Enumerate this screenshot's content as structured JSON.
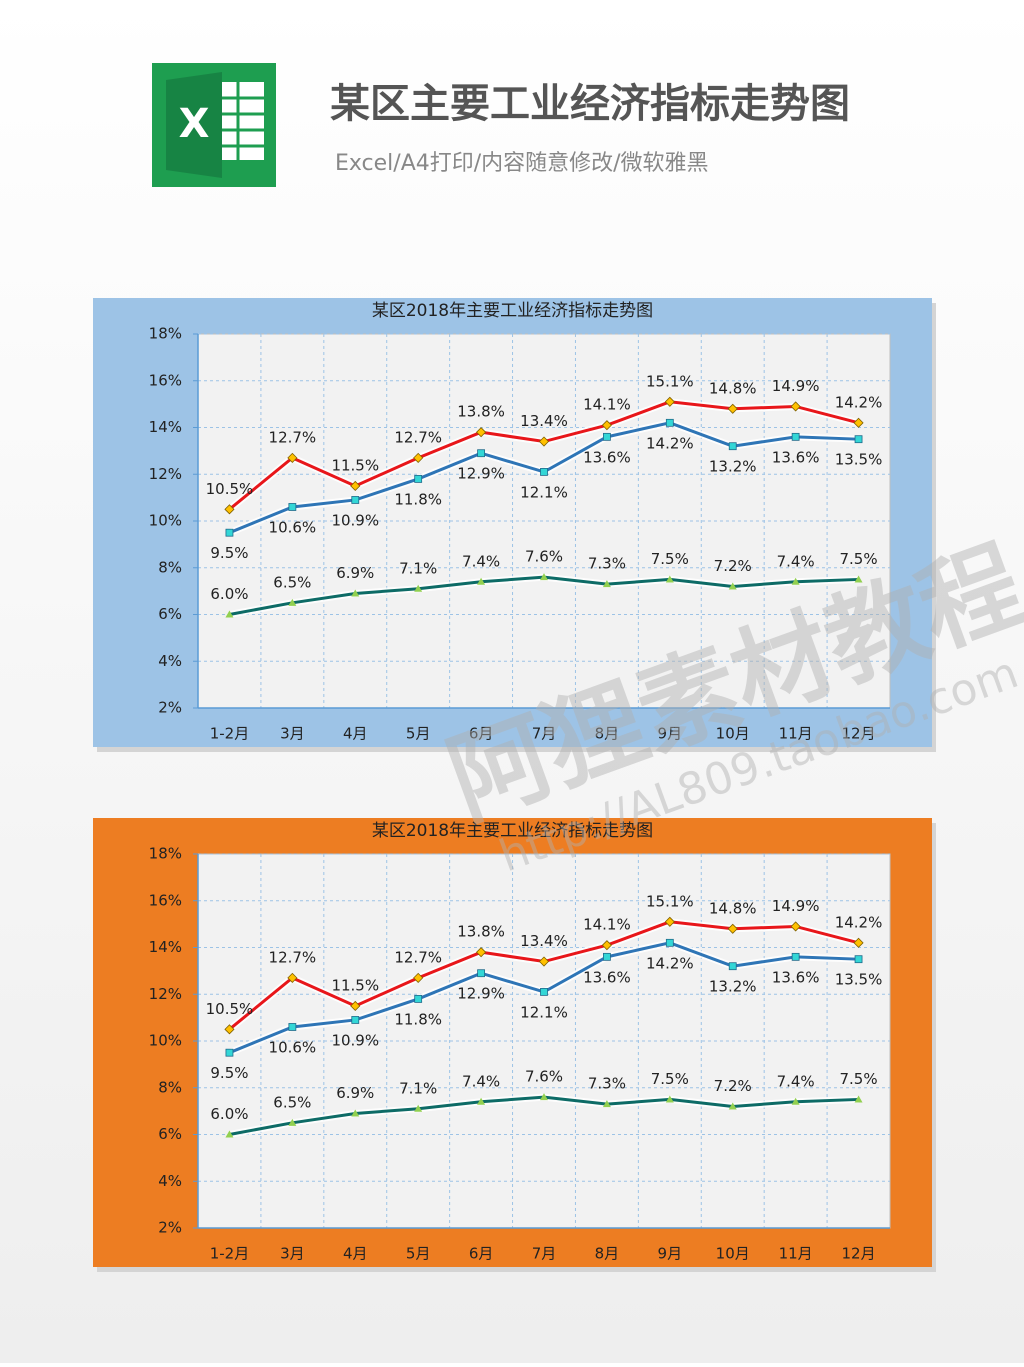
{
  "header": {
    "logo": "X",
    "title": "某区主要工业经济指标走势图",
    "subtitle": "Excel/A4打印/内容随意修改/微软雅黑"
  },
  "watermark": {
    "name": "阿狸素材教程",
    "url": "http://AL809.taobao.com"
  },
  "chart_data": [
    {
      "type": "line",
      "title": "某区2018年主要工业经济指标走势图",
      "background": "#9dc3e6",
      "categories": [
        "1-2月",
        "3月",
        "4月",
        "5月",
        "6月",
        "7月",
        "8月",
        "9月",
        "10月",
        "11月",
        "12月"
      ],
      "series": [
        {
          "color": "#e8161a",
          "marker": "diamond",
          "marker_color": "#ffc000",
          "label_position": "above",
          "values": [
            10.5,
            12.7,
            11.5,
            12.7,
            13.8,
            13.4,
            14.1,
            15.1,
            14.8,
            14.9,
            14.2
          ],
          "value_labels": [
            "10.5%",
            "12.7%",
            "11.5%",
            "12.7%",
            "13.8%",
            "13.4%",
            "14.1%",
            "15.1%",
            "14.8%",
            "14.9%",
            "14.2%"
          ]
        },
        {
          "color": "#2e75b6",
          "marker": "square",
          "marker_color": "#33d6d6",
          "label_position": "below",
          "values": [
            9.5,
            10.6,
            10.9,
            11.8,
            12.9,
            12.1,
            13.6,
            14.2,
            13.2,
            13.6,
            13.5
          ],
          "value_labels": [
            "9.5%",
            "10.6%",
            "10.9%",
            "11.8%",
            "12.9%",
            "12.1%",
            "13.6%",
            "14.2%",
            "13.2%",
            "13.6%",
            "13.5%"
          ]
        },
        {
          "color": "#0d6b66",
          "marker": "triangle",
          "marker_color": "#92d050",
          "label_position": "above",
          "values": [
            6.0,
            6.5,
            6.9,
            7.1,
            7.4,
            7.6,
            7.3,
            7.5,
            7.2,
            7.4,
            7.5
          ],
          "value_labels": [
            "6.0%",
            "6.5%",
            "6.9%",
            "7.1%",
            "7.4%",
            "7.6%",
            "7.3%",
            "7.5%",
            "7.2%",
            "7.4%",
            "7.5%"
          ]
        }
      ],
      "ylim": [
        2,
        18
      ],
      "yticks": [
        {
          "value": 2,
          "label": "2%"
        },
        {
          "value": 4,
          "label": "4%"
        },
        {
          "value": 6,
          "label": "6%"
        },
        {
          "value": 8,
          "label": "8%"
        },
        {
          "value": 10,
          "label": "10%"
        },
        {
          "value": 12,
          "label": "12%"
        },
        {
          "value": 14,
          "label": "14%"
        },
        {
          "value": 16,
          "label": "16%"
        },
        {
          "value": 18,
          "label": "18%"
        }
      ],
      "grid": true
    },
    {
      "type": "line",
      "title": "某区2018年主要工业经济指标走势图",
      "background": "#ed7d22",
      "categories": [
        "1-2月",
        "3月",
        "4月",
        "5月",
        "6月",
        "7月",
        "8月",
        "9月",
        "10月",
        "11月",
        "12月"
      ],
      "series": [
        {
          "color": "#e8161a",
          "marker": "diamond",
          "marker_color": "#ffc000",
          "label_position": "above",
          "values": [
            10.5,
            12.7,
            11.5,
            12.7,
            13.8,
            13.4,
            14.1,
            15.1,
            14.8,
            14.9,
            14.2
          ],
          "value_labels": [
            "10.5%",
            "12.7%",
            "11.5%",
            "12.7%",
            "13.8%",
            "13.4%",
            "14.1%",
            "15.1%",
            "14.8%",
            "14.9%",
            "14.2%"
          ]
        },
        {
          "color": "#2e75b6",
          "marker": "square",
          "marker_color": "#33d6d6",
          "label_position": "below",
          "values": [
            9.5,
            10.6,
            10.9,
            11.8,
            12.9,
            12.1,
            13.6,
            14.2,
            13.2,
            13.6,
            13.5
          ],
          "value_labels": [
            "9.5%",
            "10.6%",
            "10.9%",
            "11.8%",
            "12.9%",
            "12.1%",
            "13.6%",
            "14.2%",
            "13.2%",
            "13.6%",
            "13.5%"
          ]
        },
        {
          "color": "#0d6b66",
          "marker": "triangle",
          "marker_color": "#92d050",
          "label_position": "above",
          "values": [
            6.0,
            6.5,
            6.9,
            7.1,
            7.4,
            7.6,
            7.3,
            7.5,
            7.2,
            7.4,
            7.5
          ],
          "value_labels": [
            "6.0%",
            "6.5%",
            "6.9%",
            "7.1%",
            "7.4%",
            "7.6%",
            "7.3%",
            "7.5%",
            "7.2%",
            "7.4%",
            "7.5%"
          ]
        }
      ],
      "ylim": [
        2,
        18
      ],
      "yticks": [
        {
          "value": 2,
          "label": "2%"
        },
        {
          "value": 4,
          "label": "4%"
        },
        {
          "value": 6,
          "label": "6%"
        },
        {
          "value": 8,
          "label": "8%"
        },
        {
          "value": 10,
          "label": "10%"
        },
        {
          "value": 12,
          "label": "12%"
        },
        {
          "value": 14,
          "label": "14%"
        },
        {
          "value": 16,
          "label": "16%"
        },
        {
          "value": 18,
          "label": "18%"
        }
      ],
      "grid": true
    }
  ]
}
